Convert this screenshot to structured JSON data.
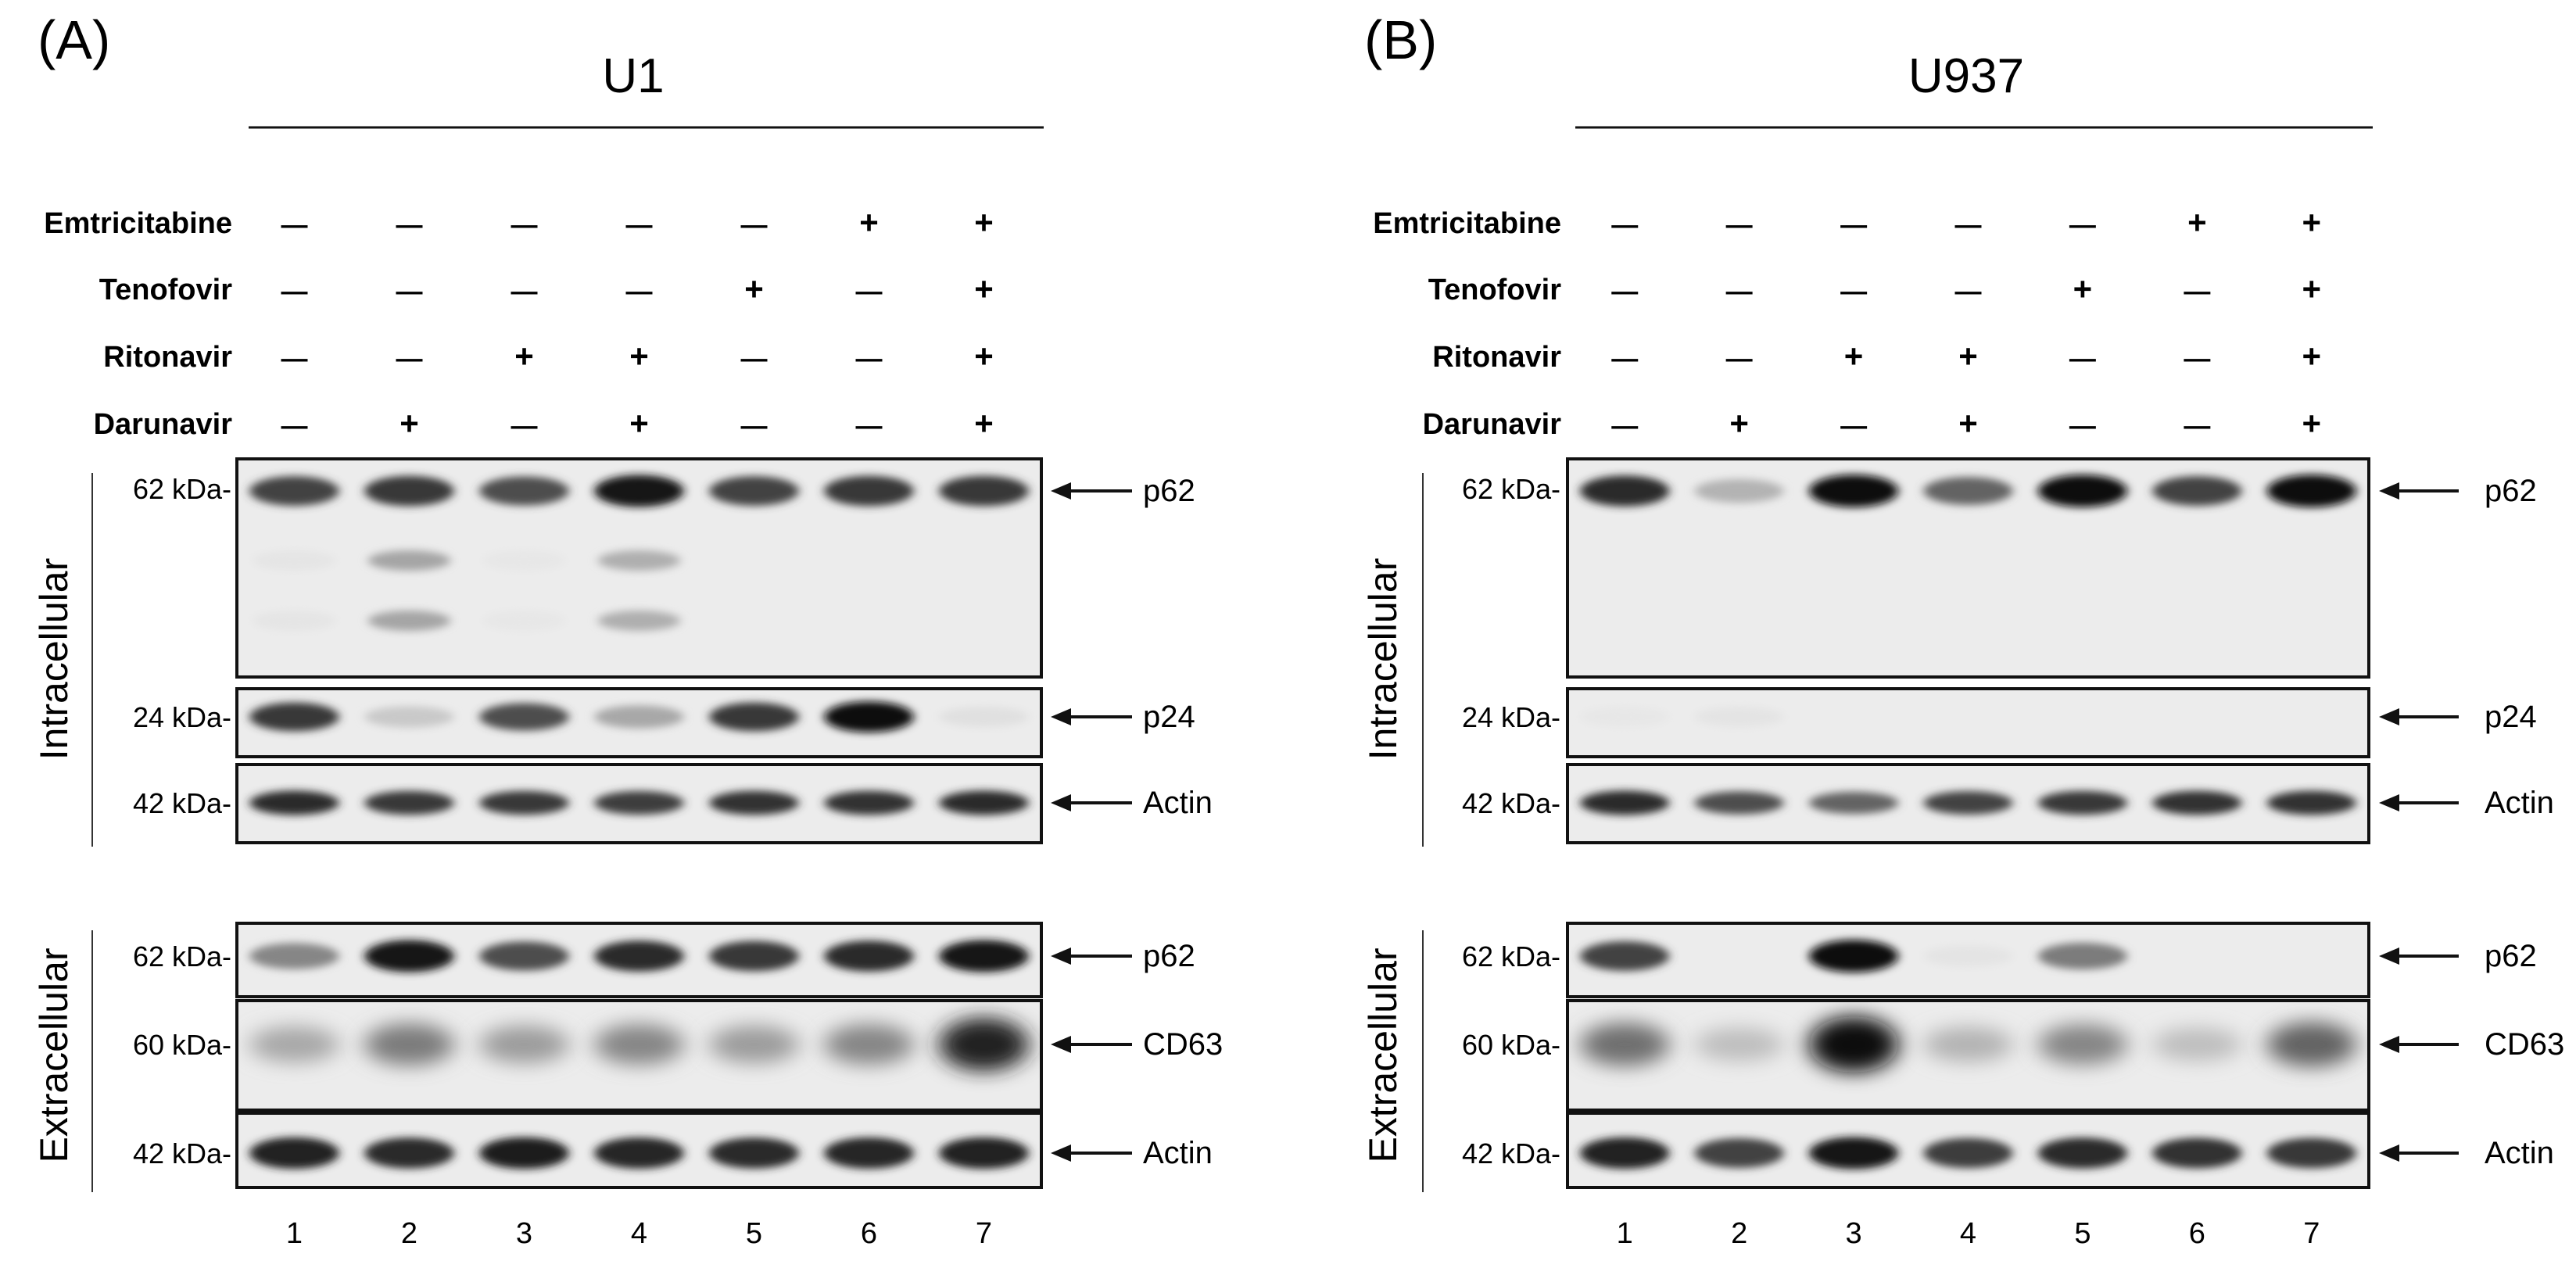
{
  "panels": [
    {
      "letter": "(A)",
      "cell_line": "U1",
      "treatments": [
        {
          "name": "Emtricitabine",
          "signs": [
            "—",
            "—",
            "—",
            "—",
            "—",
            "+",
            "+"
          ]
        },
        {
          "name": "Tenofovir",
          "signs": [
            "—",
            "—",
            "—",
            "—",
            "+",
            "—",
            "+"
          ]
        },
        {
          "name": "Ritonavir",
          "signs": [
            "—",
            "—",
            "+",
            "+",
            "—",
            "—",
            "+"
          ]
        },
        {
          "name": "Darunavir",
          "signs": [
            "—",
            "+",
            "—",
            "+",
            "—",
            "—",
            "+"
          ]
        }
      ],
      "fractions": {
        "intracellular": "Intracellular",
        "extracellular": "Extracellular"
      },
      "blots": [
        {
          "marker": "62 kDa-",
          "protein": "p62",
          "band_intensity": [
            0.75,
            0.8,
            0.7,
            0.95,
            0.75,
            0.8,
            0.8
          ],
          "faint_rows": [
            [
              0.03,
              0.35,
              0.02,
              0.3,
              0.0,
              0.0,
              0.0
            ],
            [
              0.03,
              0.35,
              0.02,
              0.3,
              0.0,
              0.0,
              0.0
            ]
          ]
        },
        {
          "marker": "24 kDa-",
          "protein": "p24",
          "band_intensity": [
            0.8,
            0.15,
            0.7,
            0.3,
            0.8,
            1.0,
            0.05
          ]
        },
        {
          "marker": "42 kDa-",
          "protein": "Actin",
          "band_intensity": [
            0.85,
            0.8,
            0.8,
            0.78,
            0.82,
            0.82,
            0.85
          ]
        },
        {
          "marker": "62 kDa-",
          "protein": "p62",
          "band_intensity": [
            0.45,
            0.95,
            0.7,
            0.85,
            0.8,
            0.85,
            0.95
          ]
        },
        {
          "marker": "60 kDa-",
          "protein": "CD63",
          "band_intensity": [
            0.3,
            0.5,
            0.35,
            0.45,
            0.35,
            0.45,
            0.9
          ]
        },
        {
          "marker": "42 kDa-",
          "protein": "Actin",
          "band_intensity": [
            0.9,
            0.85,
            0.92,
            0.88,
            0.85,
            0.88,
            0.9
          ]
        }
      ],
      "lanes": [
        "1",
        "2",
        "3",
        "4",
        "5",
        "6",
        "7"
      ]
    },
    {
      "letter": "(B)",
      "cell_line": "U937",
      "treatments": [
        {
          "name": "Emtricitabine",
          "signs": [
            "—",
            "—",
            "—",
            "—",
            "—",
            "+",
            "+"
          ]
        },
        {
          "name": "Tenofovir",
          "signs": [
            "—",
            "—",
            "—",
            "—",
            "+",
            "—",
            "+"
          ]
        },
        {
          "name": "Ritonavir",
          "signs": [
            "—",
            "—",
            "+",
            "+",
            "—",
            "—",
            "+"
          ]
        },
        {
          "name": "Darunavir",
          "signs": [
            "—",
            "+",
            "—",
            "+",
            "—",
            "—",
            "+"
          ]
        }
      ],
      "fractions": {
        "intracellular": "Intracellular",
        "extracellular": "Extracellular"
      },
      "blots": [
        {
          "marker": "62 kDa-",
          "protein": "p62",
          "band_intensity": [
            0.85,
            0.25,
            1.0,
            0.6,
            0.98,
            0.75,
            1.0
          ]
        },
        {
          "marker": "24 kDa-",
          "protein": "p24",
          "band_intensity": [
            0.02,
            0.03,
            0.0,
            0.0,
            0.0,
            0.0,
            0.0
          ]
        },
        {
          "marker": "42 kDa-",
          "protein": "Actin",
          "band_intensity": [
            0.85,
            0.7,
            0.6,
            0.75,
            0.8,
            0.82,
            0.82
          ]
        },
        {
          "marker": "62 kDa-",
          "protein": "p62",
          "band_intensity": [
            0.75,
            0.0,
            1.0,
            0.03,
            0.5,
            0.0,
            0.0
          ]
        },
        {
          "marker": "60 kDa-",
          "protein": "CD63",
          "band_intensity": [
            0.55,
            0.2,
            1.0,
            0.25,
            0.45,
            0.2,
            0.6
          ]
        },
        {
          "marker": "42 kDa-",
          "protein": "Actin",
          "band_intensity": [
            0.9,
            0.75,
            0.95,
            0.78,
            0.85,
            0.82,
            0.8
          ]
        }
      ],
      "lanes": [
        "1",
        "2",
        "3",
        "4",
        "5",
        "6",
        "7"
      ]
    }
  ]
}
